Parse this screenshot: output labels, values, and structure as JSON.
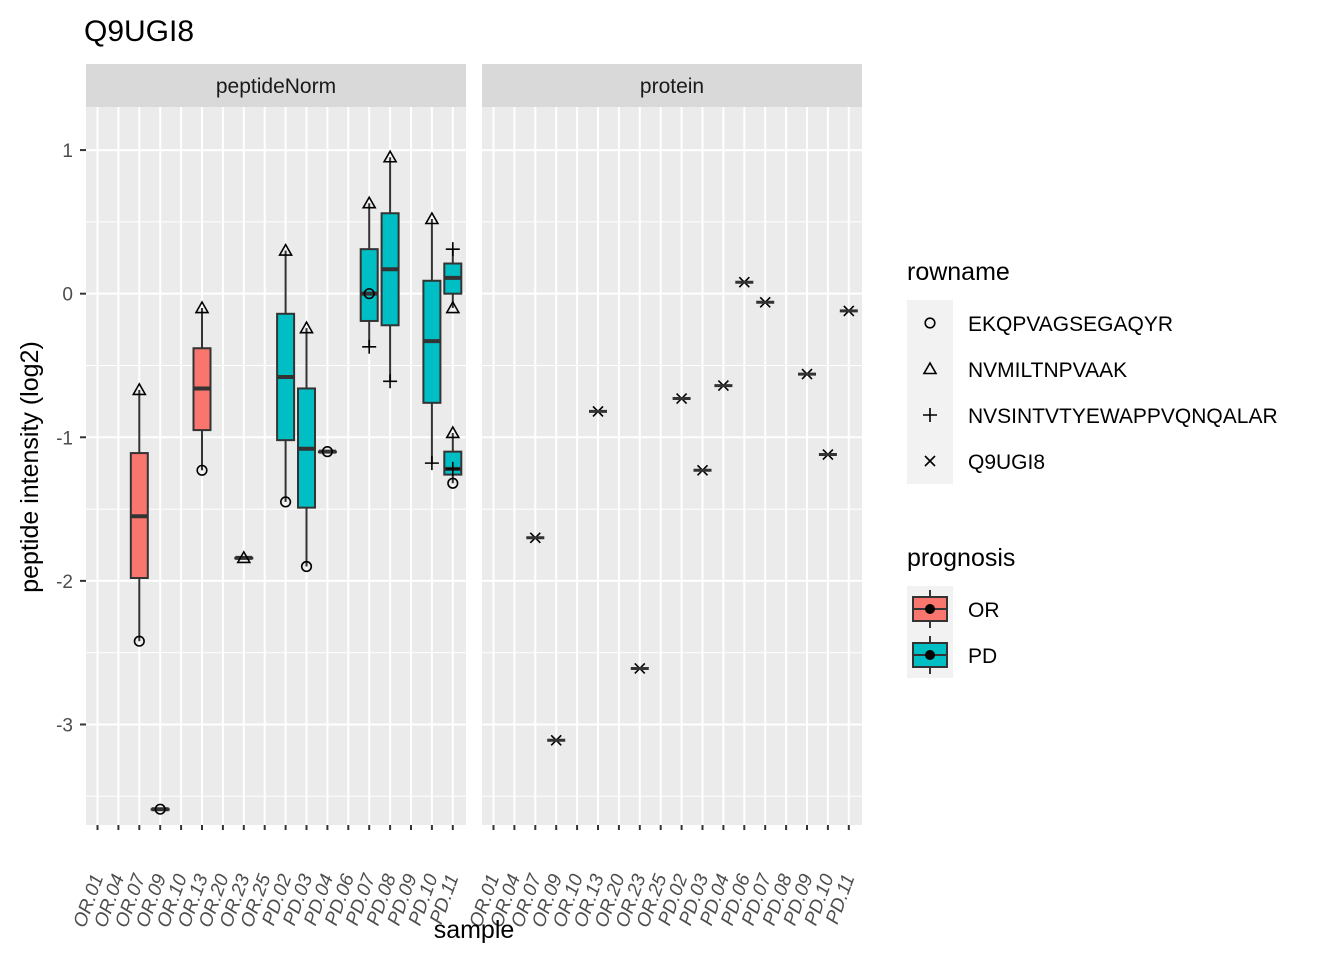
{
  "chart_data": {
    "type": "box",
    "title": "Q9UGI8",
    "xlabel": "sample",
    "ylabel": "peptide intensity (log2)",
    "ylim": [
      -3.7,
      1.3
    ],
    "yticks": [
      -3,
      -2,
      -1,
      0,
      1
    ],
    "ytick_labels": [
      "-3",
      "-2",
      "-1",
      "0",
      "1"
    ],
    "grid": true,
    "categories": [
      "OR.01",
      "OR.04",
      "OR.07",
      "OR.09",
      "OR.10",
      "OR.13",
      "OR.20",
      "OR.23",
      "OR.25",
      "PD.02",
      "PD.03",
      "PD.04",
      "PD.06",
      "PD.07",
      "PD.08",
      "PD.09",
      "PD.10",
      "PD.11"
    ],
    "facets": [
      "peptideNorm",
      "protein"
    ],
    "prognosis": {
      "OR.01": "OR",
      "OR.04": "OR",
      "OR.07": "OR",
      "OR.09": "OR",
      "OR.10": "OR",
      "OR.13": "OR",
      "OR.20": "OR",
      "OR.23": "OR",
      "OR.25": "OR",
      "PD.02": "PD",
      "PD.03": "PD",
      "PD.04": "PD",
      "PD.06": "PD",
      "PD.07": "PD",
      "PD.08": "PD",
      "PD.09": "PD",
      "PD.10": "PD",
      "PD.11": "PD"
    },
    "boxes": [
      {
        "facet": "peptideNorm",
        "sample": "OR.07",
        "prognosis": "OR",
        "ymin": -2.42,
        "q1": -1.98,
        "median": -1.55,
        "q3": -1.11,
        "ymax": -0.67
      },
      {
        "facet": "peptideNorm",
        "sample": "OR.09",
        "prognosis": "OR",
        "ymin": -3.59,
        "q1": -3.59,
        "median": -3.59,
        "q3": -3.59,
        "ymax": -3.59
      },
      {
        "facet": "peptideNorm",
        "sample": "OR.13",
        "prognosis": "OR",
        "ymin": -1.23,
        "q1": -0.95,
        "median": -0.66,
        "q3": -0.38,
        "ymax": -0.1
      },
      {
        "facet": "peptideNorm",
        "sample": "OR.23",
        "prognosis": "OR",
        "ymin": -1.84,
        "q1": -1.84,
        "median": -1.84,
        "q3": -1.84,
        "ymax": -1.84
      },
      {
        "facet": "peptideNorm",
        "sample": "PD.02",
        "prognosis": "PD",
        "ymin": -1.45,
        "q1": -1.02,
        "median": -0.58,
        "q3": -0.14,
        "ymax": 0.3
      },
      {
        "facet": "peptideNorm",
        "sample": "PD.03",
        "prognosis": "PD",
        "ymin": -1.9,
        "q1": -1.49,
        "median": -1.08,
        "q3": -0.66,
        "ymax": -0.24
      },
      {
        "facet": "peptideNorm",
        "sample": "PD.04",
        "prognosis": "PD",
        "ymin": -1.1,
        "q1": -1.1,
        "median": -1.1,
        "q3": -1.1,
        "ymax": -1.1
      },
      {
        "facet": "peptideNorm",
        "sample": "PD.07",
        "prognosis": "PD",
        "ymin": -0.37,
        "q1": -0.19,
        "median": 0.0,
        "q3": 0.31,
        "ymax": 0.63
      },
      {
        "facet": "peptideNorm",
        "sample": "PD.08",
        "prognosis": "PD",
        "ymin": -0.61,
        "q1": -0.22,
        "median": 0.17,
        "q3": 0.56,
        "ymax": 0.95
      },
      {
        "facet": "peptideNorm",
        "sample": "PD.10",
        "prognosis": "PD",
        "ymin": -1.18,
        "q1": -0.76,
        "median": -0.33,
        "q3": 0.09,
        "ymax": 0.52
      },
      {
        "facet": "peptideNorm",
        "sample": "PD.11",
        "prognosis": "PD",
        "ymin": -1.32,
        "q1": -1.26,
        "median": -1.22,
        "q3": -1.1,
        "ymax": -0.97
      },
      {
        "facet": "peptideNorm",
        "sample": "PD.11",
        "prognosis": "PD",
        "ymin": -0.1,
        "q1": 0.0,
        "median": 0.11,
        "q3": 0.21,
        "ymax": 0.31
      }
    ],
    "points": [
      {
        "facet": "peptideNorm",
        "sample": "OR.07",
        "rowname": "NVMILTNPVAAK",
        "y": -0.67
      },
      {
        "facet": "peptideNorm",
        "sample": "OR.07",
        "rowname": "EKQPVAGSEGAQYR",
        "y": -2.42
      },
      {
        "facet": "peptideNorm",
        "sample": "OR.09",
        "rowname": "EKQPVAGSEGAQYR",
        "y": -3.59
      },
      {
        "facet": "peptideNorm",
        "sample": "OR.13",
        "rowname": "NVMILTNPVAAK",
        "y": -0.1
      },
      {
        "facet": "peptideNorm",
        "sample": "OR.13",
        "rowname": "EKQPVAGSEGAQYR",
        "y": -1.23
      },
      {
        "facet": "peptideNorm",
        "sample": "OR.23",
        "rowname": "NVMILTNPVAAK",
        "y": -1.84
      },
      {
        "facet": "peptideNorm",
        "sample": "PD.02",
        "rowname": "NVMILTNPVAAK",
        "y": 0.3
      },
      {
        "facet": "peptideNorm",
        "sample": "PD.02",
        "rowname": "EKQPVAGSEGAQYR",
        "y": -1.45
      },
      {
        "facet": "peptideNorm",
        "sample": "PD.03",
        "rowname": "NVMILTNPVAAK",
        "y": -0.24
      },
      {
        "facet": "peptideNorm",
        "sample": "PD.03",
        "rowname": "EKQPVAGSEGAQYR",
        "y": -1.9
      },
      {
        "facet": "peptideNorm",
        "sample": "PD.04",
        "rowname": "EKQPVAGSEGAQYR",
        "y": -1.1
      },
      {
        "facet": "peptideNorm",
        "sample": "PD.07",
        "rowname": "NVMILTNPVAAK",
        "y": 0.63
      },
      {
        "facet": "peptideNorm",
        "sample": "PD.07",
        "rowname": "EKQPVAGSEGAQYR",
        "y": 0.0
      },
      {
        "facet": "peptideNorm",
        "sample": "PD.07",
        "rowname": "NVSINTVTYEWAPPVQNQALAR",
        "y": -0.37
      },
      {
        "facet": "peptideNorm",
        "sample": "PD.08",
        "rowname": "NVMILTNPVAAK",
        "y": 0.95
      },
      {
        "facet": "peptideNorm",
        "sample": "PD.08",
        "rowname": "NVSINTVTYEWAPPVQNQALAR",
        "y": -0.61
      },
      {
        "facet": "peptideNorm",
        "sample": "PD.10",
        "rowname": "NVMILTNPVAAK",
        "y": 0.52
      },
      {
        "facet": "peptideNorm",
        "sample": "PD.10",
        "rowname": "NVSINTVTYEWAPPVQNQALAR",
        "y": -1.18
      },
      {
        "facet": "peptideNorm",
        "sample": "PD.11",
        "rowname": "NVMILTNPVAAK",
        "y": -0.97
      },
      {
        "facet": "peptideNorm",
        "sample": "PD.11",
        "rowname": "NVSINTVTYEWAPPVQNQALAR",
        "y": -1.22
      },
      {
        "facet": "peptideNorm",
        "sample": "PD.11",
        "rowname": "EKQPVAGSEGAQYR",
        "y": -1.32
      },
      {
        "facet": "peptideNorm",
        "sample": "PD.11",
        "rowname": "NVSINTVTYEWAPPVQNQALAR",
        "y": 0.31
      },
      {
        "facet": "peptideNorm",
        "sample": "PD.11",
        "rowname": "NVMILTNPVAAK",
        "y": -0.1
      },
      {
        "facet": "protein",
        "sample": "OR.07",
        "rowname": "Q9UGI8",
        "y": -1.7
      },
      {
        "facet": "protein",
        "sample": "OR.09",
        "rowname": "Q9UGI8",
        "y": -3.11
      },
      {
        "facet": "protein",
        "sample": "OR.13",
        "rowname": "Q9UGI8",
        "y": -0.82
      },
      {
        "facet": "protein",
        "sample": "OR.23",
        "rowname": "Q9UGI8",
        "y": -2.61
      },
      {
        "facet": "protein",
        "sample": "PD.02",
        "rowname": "Q9UGI8",
        "y": -0.73
      },
      {
        "facet": "protein",
        "sample": "PD.03",
        "rowname": "Q9UGI8",
        "y": -1.23
      },
      {
        "facet": "protein",
        "sample": "PD.04",
        "rowname": "Q9UGI8",
        "y": -0.64
      },
      {
        "facet": "protein",
        "sample": "PD.06",
        "rowname": "Q9UGI8",
        "y": 0.08
      },
      {
        "facet": "protein",
        "sample": "PD.07",
        "rowname": "Q9UGI8",
        "y": -0.06
      },
      {
        "facet": "protein",
        "sample": "PD.09",
        "rowname": "Q9UGI8",
        "y": -0.56
      },
      {
        "facet": "protein",
        "sample": "PD.10",
        "rowname": "Q9UGI8",
        "y": -1.12
      },
      {
        "facet": "protein",
        "sample": "PD.11",
        "rowname": "Q9UGI8",
        "y": -0.12
      }
    ],
    "legend_shape": {
      "title": "rowname",
      "entries": [
        {
          "label": "EKQPVAGSEGAQYR",
          "shape": "circle"
        },
        {
          "label": "NVMILTNPVAAK",
          "shape": "triangle"
        },
        {
          "label": "NVSINTVTYEWAPPVQNQALAR",
          "shape": "plus"
        },
        {
          "label": "Q9UGI8",
          "shape": "cross"
        }
      ]
    },
    "legend_fill": {
      "title": "prognosis",
      "entries": [
        {
          "label": "OR",
          "color": "#F8766D"
        },
        {
          "label": "PD",
          "color": "#00BFC4"
        }
      ]
    },
    "legend_position": "right",
    "colors": {
      "OR": "#F8766D",
      "PD": "#00BFC4",
      "panel": "#EBEBEB",
      "strip": "#D9D9D9",
      "grid": "#FFFFFF"
    }
  }
}
